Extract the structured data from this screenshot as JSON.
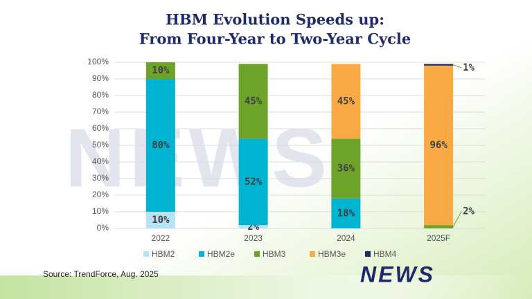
{
  "chart_data": {
    "type": "stacked_bar",
    "title": [
      "HBM Evolution Speeds up:",
      "From Four-Year to Two-Year Cycle"
    ],
    "categories": [
      "2022",
      "2023",
      "2024",
      "2025F"
    ],
    "series": [
      {
        "name": "HBM2",
        "color": "#b7e3f4",
        "values": [
          10,
          2,
          null,
          null
        ],
        "value_labels": [
          "10%",
          "2%",
          null,
          null
        ]
      },
      {
        "name": "HBM2e",
        "color": "#00b4d2",
        "values": [
          80,
          52,
          18,
          null
        ],
        "value_labels": [
          "80%",
          "52%",
          "18%",
          null
        ]
      },
      {
        "name": "HBM3",
        "color": "#6ea32a",
        "values": [
          10,
          45,
          36,
          2
        ],
        "value_labels": [
          "10%",
          "45%",
          "36%",
          "2%"
        ]
      },
      {
        "name": "HBM3e",
        "color": "#f9aa44",
        "values": [
          null,
          null,
          45,
          96
        ],
        "value_labels": [
          null,
          null,
          "45%",
          "96%"
        ]
      },
      {
        "name": "HBM4",
        "color": "#1f2a6b",
        "values": [
          null,
          null,
          null,
          1
        ],
        "value_labels": [
          null,
          null,
          null,
          "1%"
        ]
      }
    ],
    "ylim": [
      0,
      100
    ],
    "yticks": [
      {
        "value": 0,
        "label": "0%"
      },
      {
        "value": 10,
        "label": "10%"
      },
      {
        "value": 20,
        "label": "20%"
      },
      {
        "value": 30,
        "label": "30%"
      },
      {
        "value": 40,
        "label": "40%"
      },
      {
        "value": 50,
        "label": "50%"
      },
      {
        "value": 60,
        "label": "60%"
      },
      {
        "value": 70,
        "label": "70%"
      },
      {
        "value": 80,
        "label": "80%"
      },
      {
        "value": 90,
        "label": "90%"
      },
      {
        "value": 100,
        "label": "100%"
      }
    ],
    "grid": true,
    "source": "Source: TrendForce, Aug. 2025",
    "logo": "NEWS"
  }
}
